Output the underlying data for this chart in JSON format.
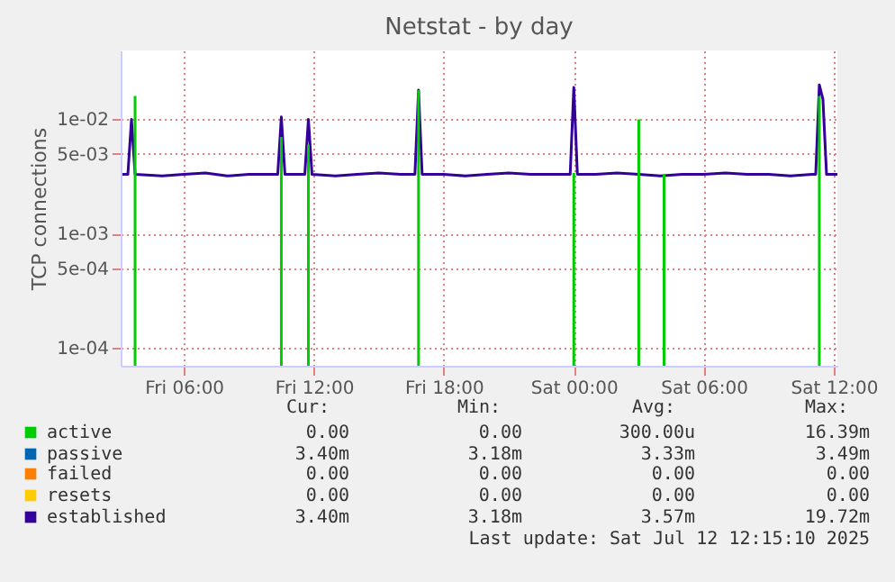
{
  "chart_data": {
    "type": "line",
    "title": "Netstat - by day",
    "ylabel": "TCP connections",
    "log": true,
    "grid": true,
    "legend": "bottom",
    "xlim": [
      "2025-07-11T03:05",
      "2025-07-12T12:10"
    ],
    "xticks": [
      {
        "value": "2025-07-11T06:00",
        "label": "Fri 06:00"
      },
      {
        "value": "2025-07-11T12:00",
        "label": "Fri 12:00"
      },
      {
        "value": "2025-07-11T18:00",
        "label": "Fri 18:00"
      },
      {
        "value": "2025-07-12T00:00",
        "label": "Sat 00:00"
      },
      {
        "value": "2025-07-12T06:00",
        "label": "Sat 06:00"
      },
      {
        "value": "2025-07-12T12:00",
        "label": "Sat 12:00"
      }
    ],
    "ylim": [
      7e-05,
      0.04
    ],
    "yticks": [
      {
        "value": 0.0001,
        "label": "1e-04"
      },
      {
        "value": 0.0005,
        "label": "5e-04"
      },
      {
        "value": 0.001,
        "label": "1e-03"
      },
      {
        "value": 0.005,
        "label": "5e-03"
      },
      {
        "value": 0.01,
        "label": "1e-02"
      }
    ],
    "series": [
      {
        "name": "active",
        "color": "#00cc00",
        "type": "bar",
        "x": [
          "2025-07-11T03:45",
          "2025-07-11T10:30",
          "2025-07-11T11:45",
          "2025-07-11T16:50",
          "2025-07-12T00:00",
          "2025-07-12T03:00",
          "2025-07-12T04:10",
          "2025-07-12T11:20"
        ],
        "values": [
          0.016,
          0.007,
          0.006,
          0.018,
          0.0034,
          0.01,
          0.0033,
          0.016
        ]
      },
      {
        "name": "passive",
        "color": "#0066b3"
      },
      {
        "name": "failed",
        "color": "#ff8000"
      },
      {
        "name": "resets",
        "color": "#ffcc00"
      },
      {
        "name": "established",
        "color": "#330099",
        "x": [
          "2025-07-11T03:10",
          "2025-07-11T03:25",
          "2025-07-11T03:35",
          "2025-07-11T03:45",
          "2025-07-11T05:00",
          "2025-07-11T06:00",
          "2025-07-11T07:00",
          "2025-07-11T08:00",
          "2025-07-11T09:00",
          "2025-07-11T10:00",
          "2025-07-11T10:20",
          "2025-07-11T10:30",
          "2025-07-11T10:40",
          "2025-07-11T11:00",
          "2025-07-11T11:35",
          "2025-07-11T11:45",
          "2025-07-11T11:55",
          "2025-07-11T13:00",
          "2025-07-11T14:00",
          "2025-07-11T15:00",
          "2025-07-11T16:00",
          "2025-07-11T16:40",
          "2025-07-11T16:50",
          "2025-07-11T17:00",
          "2025-07-11T18:00",
          "2025-07-11T19:00",
          "2025-07-11T20:00",
          "2025-07-11T21:00",
          "2025-07-11T22:00",
          "2025-07-11T23:00",
          "2025-07-11T23:50",
          "2025-07-12T00:00",
          "2025-07-12T00:10",
          "2025-07-12T01:00",
          "2025-07-12T02:00",
          "2025-07-12T03:00",
          "2025-07-12T04:00",
          "2025-07-12T05:00",
          "2025-07-12T06:00",
          "2025-07-12T07:00",
          "2025-07-12T08:00",
          "2025-07-12T09:00",
          "2025-07-12T10:00",
          "2025-07-12T11:00",
          "2025-07-12T11:10",
          "2025-07-12T11:20",
          "2025-07-12T11:30",
          "2025-07-12T11:40",
          "2025-07-12T12:10"
        ],
        "values": [
          0.0033,
          0.0033,
          0.01,
          0.0033,
          0.0032,
          0.0033,
          0.0034,
          0.0032,
          0.0033,
          0.0033,
          0.0033,
          0.0105,
          0.0033,
          0.0033,
          0.0033,
          0.01,
          0.0033,
          0.0032,
          0.0033,
          0.0034,
          0.0033,
          0.0033,
          0.018,
          0.0033,
          0.0033,
          0.0032,
          0.0033,
          0.0034,
          0.0033,
          0.0033,
          0.0033,
          0.019,
          0.0033,
          0.0033,
          0.0034,
          0.0033,
          0.0032,
          0.0033,
          0.0033,
          0.0034,
          0.0033,
          0.0033,
          0.0032,
          0.0033,
          0.0033,
          0.02,
          0.015,
          0.0033,
          0.0033
        ]
      }
    ],
    "annotations": [
      "Cur:",
      "Min:",
      "Avg:",
      "Max:",
      "0.00",
      "0.00",
      "300.00u",
      "16.39m",
      "3.40m",
      "3.18m",
      "3.33m",
      "3.49m",
      "0.00",
      "0.00",
      "0.00",
      "0.00",
      "0.00",
      "0.00",
      "0.00",
      "0.00",
      "3.40m",
      "3.18m",
      "3.57m",
      "19.72m",
      "Last update: Sat Jul 12 12:15:10 2025"
    ]
  }
}
